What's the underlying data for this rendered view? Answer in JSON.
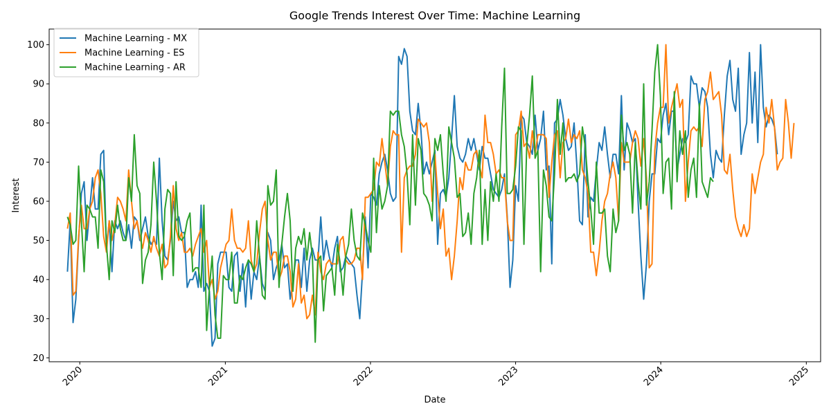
{
  "chart_data": {
    "type": "line",
    "title": "Google Trends Interest Over Time: Machine Learning",
    "xlabel": "Date",
    "ylabel": "Interest",
    "xlim": [
      "2019-10-16",
      "2025-02-06"
    ],
    "ylim": [
      19,
      104
    ],
    "x_ticks": [
      "2020-01-01",
      "2021-01-01",
      "2022-01-01",
      "2023-01-01",
      "2024-01-01",
      "2025-01-01"
    ],
    "x_tick_labels": [
      "2020",
      "2021",
      "2022",
      "2023",
      "2024",
      "2025"
    ],
    "y_ticks": [
      20,
      30,
      40,
      50,
      60,
      70,
      80,
      90,
      100
    ],
    "grid": false,
    "legend_position": "top-left",
    "x_start": "2019-12-01",
    "x_step_days": 7,
    "series": [
      {
        "name": "Machine Learning - MX",
        "color": "#1f77b4",
        "values": [
          42,
          55,
          29,
          35,
          50,
          62,
          65,
          50,
          58,
          66,
          58,
          58,
          72,
          73,
          48,
          55,
          42,
          55,
          53,
          55,
          52,
          50,
          54,
          48,
          56,
          55,
          50,
          53,
          56,
          51,
          49,
          50,
          49,
          71,
          55,
          46,
          45,
          50,
          60,
          55,
          56,
          52,
          52,
          38,
          40,
          40,
          42,
          38,
          59,
          37,
          39,
          37,
          23,
          25,
          44,
          47,
          47,
          47,
          38,
          37,
          46,
          47,
          37,
          44,
          33,
          45,
          35,
          42,
          40,
          46,
          39,
          37,
          52,
          50,
          40,
          43,
          45,
          49,
          43,
          44,
          35,
          40,
          45,
          45,
          38,
          48,
          37,
          45,
          48,
          45,
          45,
          56,
          45,
          50,
          46,
          43,
          48,
          51,
          42,
          43,
          46,
          45,
          44,
          43,
          36,
          30,
          42,
          56,
          43,
          62,
          61,
          59,
          67,
          70,
          72,
          68,
          62,
          60,
          61,
          97,
          95,
          99,
          97,
          83,
          78,
          77,
          85,
          78,
          67,
          70,
          67,
          70,
          73,
          49,
          62,
          63,
          61,
          66,
          76,
          87,
          74,
          71,
          70,
          72,
          76,
          73,
          76,
          72,
          68,
          74,
          71,
          71,
          67,
          63,
          62,
          61,
          63,
          67,
          56,
          38,
          45,
          64,
          60,
          82,
          81,
          75,
          74,
          72,
          82,
          73,
          76,
          83,
          68,
          69,
          44,
          80,
          81,
          86,
          82,
          76,
          73,
          74,
          80,
          69,
          55,
          54,
          77,
          56,
          61,
          60,
          68,
          75,
          73,
          79,
          72,
          66,
          72,
          72,
          67,
          87,
          68,
          80,
          78,
          75,
          76,
          60,
          46,
          35,
          44,
          60,
          67,
          67,
          76,
          75,
          82,
          85,
          77,
          83,
          83,
          68,
          72,
          76,
          75,
          77,
          92,
          90,
          90,
          84,
          89,
          88,
          84,
          72,
          66,
          73,
          71,
          70,
          82,
          92,
          96,
          86,
          83,
          94,
          72,
          77,
          80,
          98,
          80,
          93,
          75,
          100,
          84,
          79,
          82,
          81,
          79,
          72
        ]
      },
      {
        "name": "Machine Learning - ES",
        "color": "#ff7f0e",
        "values": [
          53,
          57,
          36,
          37,
          51,
          59,
          53,
          53,
          58,
          60,
          66,
          68,
          62,
          51,
          47,
          55,
          50,
          54,
          61,
          60,
          58,
          55,
          68,
          60,
          53,
          55,
          51,
          48,
          52,
          50,
          47,
          51,
          48,
          46,
          49,
          43,
          44,
          51,
          64,
          53,
          50,
          52,
          47,
          47,
          48,
          46,
          49,
          51,
          53,
          47,
          50,
          38,
          40,
          35,
          37,
          43,
          46,
          49,
          50,
          58,
          50,
          48,
          48,
          47,
          48,
          55,
          45,
          42,
          44,
          52,
          58,
          60,
          50,
          45,
          47,
          47,
          40,
          42,
          46,
          46,
          42,
          33,
          35,
          44,
          34,
          36,
          30,
          31,
          36,
          31,
          47,
          42,
          40,
          44,
          45,
          44,
          44,
          44,
          50,
          51,
          45,
          44,
          44,
          45,
          48,
          48,
          40,
          61,
          61,
          62,
          63,
          70,
          69,
          76,
          70,
          64,
          74,
          78,
          77,
          77,
          47,
          66,
          68,
          69,
          69,
          72,
          81,
          80,
          79,
          80,
          75,
          60,
          72,
          62,
          53,
          58,
          46,
          48,
          40,
          46,
          55,
          66,
          63,
          70,
          68,
          68,
          72,
          73,
          69,
          66,
          82,
          75,
          75,
          72,
          67,
          68,
          66,
          66,
          55,
          50,
          50,
          77,
          78,
          83,
          74,
          75,
          71,
          78,
          72,
          77,
          77,
          77,
          76,
          61,
          70,
          77,
          78,
          66,
          75,
          76,
          81,
          75,
          77,
          76,
          78,
          68,
          66,
          62,
          47,
          47,
          41,
          47,
          55,
          60,
          62,
          67,
          70,
          66,
          55,
          75,
          70,
          70,
          70,
          75,
          78,
          76,
          69,
          76,
          66,
          43,
          44,
          73,
          80,
          84,
          84,
          100,
          80,
          84,
          87,
          90,
          84,
          86,
          60,
          70,
          78,
          79,
          78,
          79,
          74,
          86,
          88,
          93,
          86,
          87,
          88,
          82,
          68,
          67,
          72,
          63,
          56,
          53,
          51,
          54,
          51,
          53,
          67,
          62,
          66,
          70,
          72,
          84,
          80,
          86,
          79,
          68,
          70,
          71,
          86,
          80,
          71,
          80
        ]
      },
      {
        "name": "Machine Learning - AR",
        "color": "#2ca02c",
        "values": [
          56,
          54,
          49,
          50,
          69,
          55,
          42,
          59,
          58,
          56,
          56,
          48,
          68,
          65,
          49,
          40,
          55,
          52,
          59,
          53,
          50,
          50,
          66,
          60,
          77,
          64,
          62,
          39,
          45,
          47,
          54,
          70,
          60,
          47,
          40,
          58,
          63,
          62,
          41,
          65,
          51,
          50,
          51,
          55,
          57,
          42,
          43,
          43,
          38,
          59,
          27,
          38,
          46,
          31,
          25,
          25,
          41,
          40,
          40,
          47,
          34,
          34,
          41,
          40,
          43,
          45,
          44,
          42,
          55,
          46,
          36,
          35,
          64,
          59,
          60,
          68,
          38,
          49,
          56,
          62,
          55,
          37,
          48,
          51,
          49,
          53,
          45,
          52,
          46,
          24,
          45,
          46,
          32,
          41,
          42,
          43,
          36,
          49,
          44,
          36,
          46,
          49,
          58,
          50,
          46,
          45,
          57,
          54,
          50,
          47,
          71,
          52,
          64,
          58,
          60,
          64,
          83,
          82,
          83,
          83,
          77,
          74,
          67,
          54,
          77,
          59,
          76,
          73,
          62,
          61,
          59,
          55,
          76,
          73,
          77,
          67,
          60,
          79,
          75,
          71,
          61,
          62,
          51,
          52,
          57,
          49,
          62,
          66,
          73,
          49,
          63,
          50,
          65,
          60,
          67,
          60,
          79,
          94,
          62,
          62,
          63,
          69,
          79,
          78,
          49,
          74,
          82,
          92,
          71,
          73,
          42,
          68,
          64,
          56,
          55,
          67,
          86,
          72,
          80,
          65,
          66,
          66,
          67,
          65,
          67,
          79,
          74,
          65,
          58,
          49,
          70,
          57,
          57,
          58,
          46,
          42,
          58,
          52,
          55,
          82,
          73,
          75,
          72,
          57,
          75,
          65,
          58,
          90,
          59,
          65,
          78,
          93,
          100,
          87,
          62,
          70,
          71,
          58,
          88,
          65,
          78,
          72,
          78,
          61,
          68,
          71,
          61,
          85,
          65,
          63,
          61,
          66,
          65
        ]
      }
    ]
  }
}
